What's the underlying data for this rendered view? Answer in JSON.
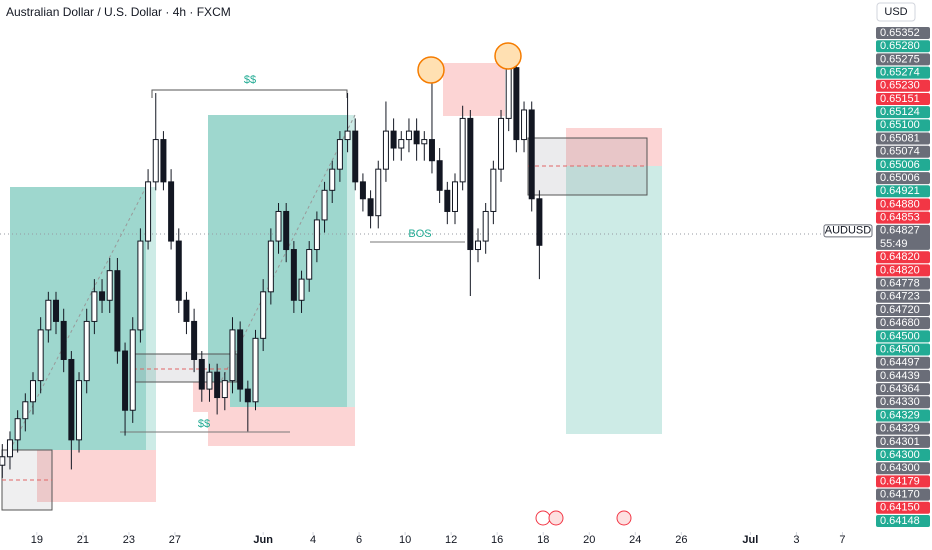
{
  "chart_data": {
    "type": "candlestick",
    "title": "Australian Dollar / U.S. Dollar · 4h · FXCM",
    "currency": "USD",
    "symbol": "AUDUSD",
    "symbol_price": "0.64827",
    "countdown": "55:49",
    "annotations": {
      "liquidity_top": "$$",
      "liquidity_bottom": "$$",
      "bos": "BOS"
    },
    "ylim": [
      0.64115,
      0.6538
    ],
    "xlim": [
      -9.6,
      225
    ],
    "xticks": [
      {
        "value": 0,
        "label": "19"
      },
      {
        "value": 12,
        "label": "21"
      },
      {
        "value": 24,
        "label": "23"
      },
      {
        "value": 36,
        "label": "27"
      },
      {
        "value": 59,
        "label": "Jun"
      },
      {
        "value": 72,
        "label": "4"
      },
      {
        "value": 84,
        "label": "6"
      },
      {
        "value": 96,
        "label": "10"
      },
      {
        "value": 108,
        "label": "12"
      },
      {
        "value": 120,
        "label": "16"
      },
      {
        "value": 132,
        "label": "18"
      },
      {
        "value": 144,
        "label": "20"
      },
      {
        "value": 156,
        "label": "24"
      },
      {
        "value": 168,
        "label": "26"
      },
      {
        "value": 186,
        "label": "Jul"
      },
      {
        "value": 198,
        "label": "3"
      },
      {
        "value": 210,
        "label": "7"
      }
    ],
    "x": [
      -9,
      -7,
      -5,
      -3,
      -1,
      1,
      3,
      5,
      7,
      9,
      11,
      13,
      15,
      17,
      19,
      21,
      23,
      25,
      27,
      29,
      31,
      33,
      35,
      37,
      39,
      41,
      43,
      45,
      47,
      49,
      51,
      53,
      55,
      57,
      59,
      61,
      63,
      65,
      67,
      69,
      71,
      73,
      75,
      77,
      79,
      81,
      83,
      85,
      87,
      89,
      91,
      93,
      95,
      97,
      99,
      101,
      103,
      105,
      107,
      109,
      111,
      113,
      115,
      117,
      119,
      121,
      123,
      125,
      127,
      129,
      131
    ],
    "ohlc": [
      [
        0.6428,
        0.6433,
        0.6425,
        0.643
      ],
      [
        0.643,
        0.6436,
        0.6427,
        0.6434
      ],
      [
        0.6434,
        0.6441,
        0.6431,
        0.6439
      ],
      [
        0.6439,
        0.6445,
        0.6436,
        0.6443
      ],
      [
        0.6443,
        0.645,
        0.644,
        0.6448
      ],
      [
        0.6448,
        0.6463,
        0.6445,
        0.646
      ],
      [
        0.646,
        0.6469,
        0.6457,
        0.6467
      ],
      [
        0.6467,
        0.6469,
        0.6459,
        0.6462
      ],
      [
        0.6462,
        0.6465,
        0.645,
        0.6453
      ],
      [
        0.6453,
        0.6455,
        0.6427,
        0.6434
      ],
      [
        0.6434,
        0.645,
        0.6431,
        0.6448
      ],
      [
        0.6448,
        0.6465,
        0.6445,
        0.6462
      ],
      [
        0.6462,
        0.6472,
        0.6459,
        0.6469
      ],
      [
        0.6469,
        0.6472,
        0.6464,
        0.6467
      ],
      [
        0.6467,
        0.6477,
        0.6464,
        0.6474
      ],
      [
        0.6474,
        0.6477,
        0.6452,
        0.6455
      ],
      [
        0.6455,
        0.6457,
        0.6435,
        0.6441
      ],
      [
        0.6441,
        0.6463,
        0.6438,
        0.646
      ],
      [
        0.646,
        0.6484,
        0.6457,
        0.6481
      ],
      [
        0.6481,
        0.6498,
        0.6479,
        0.6495
      ],
      [
        0.6495,
        0.6516,
        0.6493,
        0.6505
      ],
      [
        0.6505,
        0.6507,
        0.6493,
        0.6495
      ],
      [
        0.6495,
        0.6498,
        0.6479,
        0.6481
      ],
      [
        0.6481,
        0.6484,
        0.6464,
        0.6467
      ],
      [
        0.6467,
        0.6469,
        0.6459,
        0.6462
      ],
      [
        0.6462,
        0.6465,
        0.645,
        0.6453
      ],
      [
        0.6453,
        0.6455,
        0.6443,
        0.6446
      ],
      [
        0.6446,
        0.6452,
        0.6443,
        0.645
      ],
      [
        0.645,
        0.6452,
        0.644,
        0.6444
      ],
      [
        0.6444,
        0.645,
        0.6441,
        0.6448
      ],
      [
        0.6448,
        0.6463,
        0.6445,
        0.646
      ],
      [
        0.646,
        0.6462,
        0.6443,
        0.6446
      ],
      [
        0.6446,
        0.6448,
        0.6436,
        0.6443
      ],
      [
        0.6443,
        0.646,
        0.6441,
        0.6458
      ],
      [
        0.6458,
        0.6472,
        0.6455,
        0.6469
      ],
      [
        0.6469,
        0.6484,
        0.6466,
        0.6481
      ],
      [
        0.6481,
        0.649,
        0.6478,
        0.6488
      ],
      [
        0.6488,
        0.649,
        0.6476,
        0.6479
      ],
      [
        0.6479,
        0.6481,
        0.6464,
        0.6467
      ],
      [
        0.6467,
        0.6474,
        0.6464,
        0.6472
      ],
      [
        0.6472,
        0.6481,
        0.6469,
        0.6479
      ],
      [
        0.6479,
        0.6488,
        0.6476,
        0.6486
      ],
      [
        0.6486,
        0.6495,
        0.6483,
        0.6493
      ],
      [
        0.6493,
        0.65,
        0.649,
        0.6498
      ],
      [
        0.6498,
        0.6507,
        0.6495,
        0.6505
      ],
      [
        0.6505,
        0.6516,
        0.6502,
        0.6507
      ],
      [
        0.6507,
        0.651,
        0.6493,
        0.6495
      ],
      [
        0.6495,
        0.6497,
        0.6488,
        0.6491
      ],
      [
        0.6491,
        0.6493,
        0.6484,
        0.6487
      ],
      [
        0.6487,
        0.65,
        0.6484,
        0.6498
      ],
      [
        0.6498,
        0.6514,
        0.6495,
        0.6507
      ],
      [
        0.6507,
        0.651,
        0.65,
        0.6503
      ],
      [
        0.6503,
        0.6507,
        0.65,
        0.6505
      ],
      [
        0.6505,
        0.651,
        0.6502,
        0.6507
      ],
      [
        0.6507,
        0.651,
        0.65,
        0.6504
      ],
      [
        0.6504,
        0.6507,
        0.65,
        0.6505
      ],
      [
        0.6505,
        0.6519,
        0.6497,
        0.65
      ],
      [
        0.65,
        0.6503,
        0.649,
        0.6493
      ],
      [
        0.6493,
        0.6495,
        0.6485,
        0.6488
      ],
      [
        0.6488,
        0.6497,
        0.6485,
        0.6495
      ],
      [
        0.6495,
        0.6513,
        0.6493,
        0.651
      ],
      [
        0.651,
        0.6512,
        0.6468,
        0.6479
      ],
      [
        0.6479,
        0.6484,
        0.6476,
        0.6481
      ],
      [
        0.6481,
        0.649,
        0.6478,
        0.6488
      ],
      [
        0.6488,
        0.65,
        0.6485,
        0.6498
      ],
      [
        0.6498,
        0.6512,
        0.6495,
        0.651
      ],
      [
        0.651,
        0.6526,
        0.6507,
        0.6522
      ],
      [
        0.6522,
        0.6524,
        0.6502,
        0.6505
      ],
      [
        0.6505,
        0.6514,
        0.6502,
        0.6512
      ],
      [
        0.6512,
        0.6514,
        0.6488,
        0.6491
      ],
      [
        0.6491,
        0.6493,
        0.6472,
        0.648
      ]
    ],
    "up_color": "#ffffff",
    "down_color": "#131722",
    "price_labels_above": [
      {
        "label": "0.65352",
        "color": "#6a6d78"
      },
      {
        "label": "0.65280",
        "color": "#22ab94"
      },
      {
        "label": "0.65275",
        "color": "#6a6d78"
      },
      {
        "label": "0.65274",
        "color": "#22ab94"
      },
      {
        "label": "0.65230",
        "color": "#f23645"
      },
      {
        "label": "0.65151",
        "color": "#f23645"
      },
      {
        "label": "0.65124",
        "color": "#22ab94"
      },
      {
        "label": "0.65100",
        "color": "#22ab94"
      },
      {
        "label": "0.65081",
        "color": "#6a6d78"
      },
      {
        "label": "0.65074",
        "color": "#6a6d78"
      },
      {
        "label": "0.65006",
        "color": "#22ab94"
      },
      {
        "label": "0.65006",
        "color": "#6a6d78"
      },
      {
        "label": "0.64921",
        "color": "#22ab94"
      },
      {
        "label": "0.64880",
        "color": "#f23645"
      },
      {
        "label": "0.64853",
        "color": "#f23645"
      }
    ],
    "price_labels_below": [
      {
        "label": "0.64820",
        "color": "#f23645"
      },
      {
        "label": "0.64820",
        "color": "#f23645"
      },
      {
        "label": "0.64778",
        "color": "#6a6d78"
      },
      {
        "label": "0.64723",
        "color": "#6a6d78"
      },
      {
        "label": "0.64720",
        "color": "#6a6d78"
      },
      {
        "label": "0.64680",
        "color": "#6a6d78"
      },
      {
        "label": "0.64500",
        "color": "#22ab94"
      },
      {
        "label": "0.64500",
        "color": "#22ab94"
      },
      {
        "label": "0.64497",
        "color": "#6a6d78"
      },
      {
        "label": "0.64439",
        "color": "#6a6d78"
      },
      {
        "label": "0.64364",
        "color": "#6a6d78"
      },
      {
        "label": "0.64330",
        "color": "#6a6d78"
      },
      {
        "label": "0.64329",
        "color": "#22ab94"
      },
      {
        "label": "0.64329",
        "color": "#6a6d78"
      },
      {
        "label": "0.64301",
        "color": "#6a6d78"
      },
      {
        "label": "0.64300",
        "color": "#22ab94"
      },
      {
        "label": "0.64300",
        "color": "#6a6d78"
      },
      {
        "label": "0.64179",
        "color": "#f23645"
      },
      {
        "label": "0.64170",
        "color": "#6a6d78"
      },
      {
        "label": "0.64150",
        "color": "#f23645"
      },
      {
        "label": "0.64148",
        "color": "#22ab94"
      }
    ]
  }
}
